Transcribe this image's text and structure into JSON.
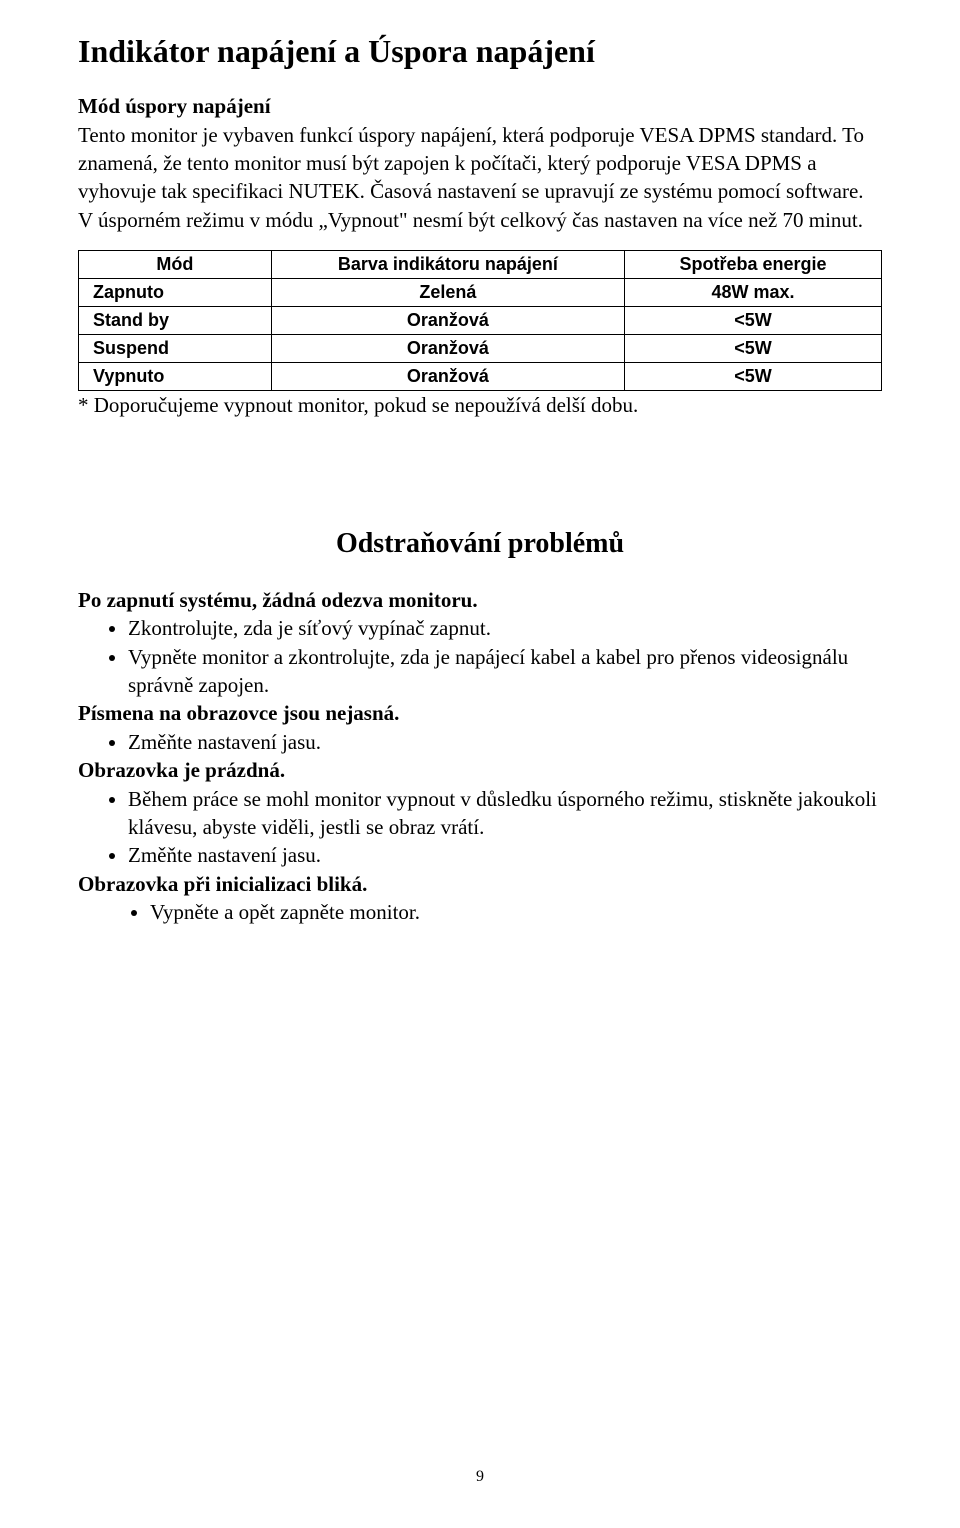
{
  "title": "Indikátor napájení a Úspora napájení",
  "intro": {
    "subtitle": "Mód úspory napájení",
    "body": "Tento monitor je vybaven funkcí úspory napájení, která podporuje VESA DPMS standard. To znamená, že tento monitor musí být zapojen k počítači, který podporuje VESA DPMS a vyhovuje tak specifikaci NUTEK. Časová nastavení  se upravují ze systému pomocí software. V úsporném režimu v módu „Vypnout\" nesmí být celkový čas nastaven na více než 70 minut."
  },
  "power_table": {
    "columns": [
      "Mód",
      "Barva indikátoru napájení",
      "Spotřeba energie"
    ],
    "column_widths_pct": [
      24,
      44,
      32
    ],
    "rows": [
      [
        "Zapnuto",
        "Zelená",
        "48W max."
      ],
      [
        "Stand by",
        "Oranžová",
        "<5W"
      ],
      [
        "Suspend",
        "Oranžová",
        "<5W"
      ],
      [
        "Vypnuto",
        "Oranžová",
        "<5W"
      ]
    ],
    "border_color": "#000000",
    "font_family": "Arial",
    "cell_fontsize": 18,
    "cell_fontweight": "bold"
  },
  "footnote": "* Doporučujeme vypnout monitor, pokud se nepoužívá delší dobu.",
  "troubleshoot": {
    "heading": "Odstraňování problémů",
    "items": [
      {
        "title": "Po zapnutí systému, žádná odezva monitoru.",
        "bullets": [
          "Zkontrolujte, zda je síťový vypínač zapnut.",
          "Vypněte monitor a zkontrolujte, zda je napájecí kabel a kabel pro přenos videosignálu správně zapojen."
        ]
      },
      {
        "title": "Písmena na obrazovce jsou nejasná.",
        "bullets": [
          "Změňte nastavení jasu."
        ]
      },
      {
        "title": "Obrazovka je prázdná.",
        "bullets": [
          "Během práce se mohl monitor vypnout v důsledku úsporného režimu, stiskněte jakoukoli klávesu, abyste viděli, jestli se obraz vrátí.",
          "Změňte nastavení jasu."
        ]
      },
      {
        "title": "Obrazovka při inicializaci bliká.",
        "bullets_indent": true,
        "bullets": [
          "Vypněte a opět zapněte monitor."
        ]
      }
    ]
  },
  "page_number": "9",
  "colors": {
    "text": "#000000",
    "background": "#ffffff"
  }
}
